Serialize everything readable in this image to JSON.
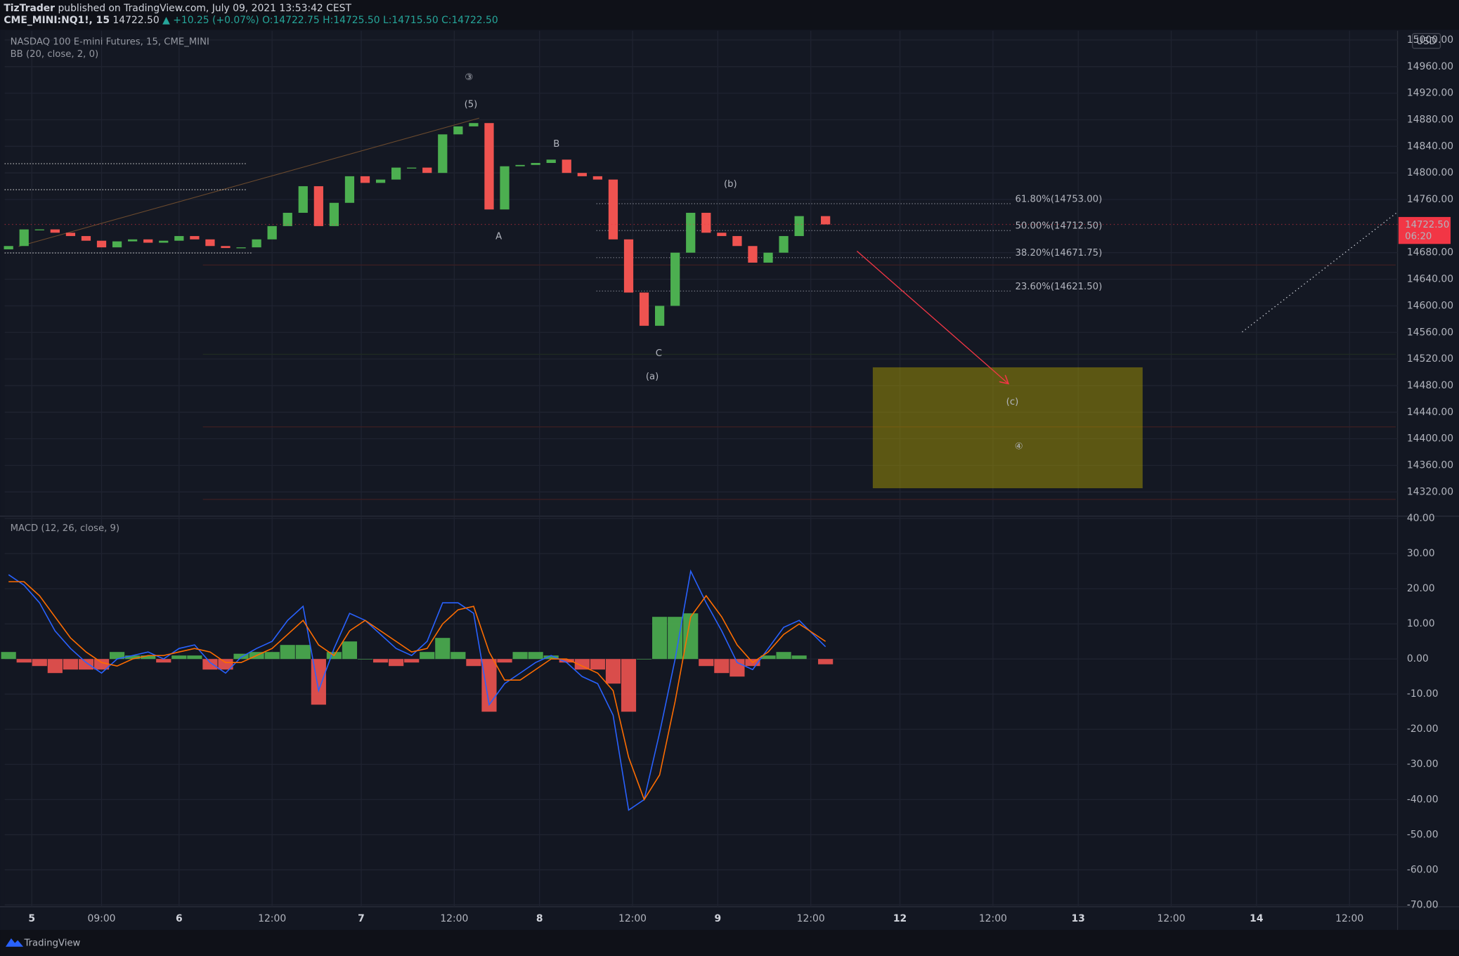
{
  "header": {
    "author": "TizTrader",
    "published": "published on TradingView.com, July 09, 2021 13:53:42 CEST",
    "symbol": "CME_MINI:NQ1!, 15",
    "price": "14722.50",
    "change": "▲ +10.25 (+0.07%)",
    "ohlc": "O:14722.75 H:14725.50 L:14715.50 C:14722.50"
  },
  "chart_data": [
    {
      "type": "candlestick",
      "title": "NASDAQ 100 E-mini Futures, 15, CME_MINI",
      "indicator": "BB (20, close, 2, 0)",
      "up_color": "#4caf50",
      "down_color": "#ef5350",
      "x": [
        -3,
        -1,
        1,
        3,
        5,
        7,
        9,
        11,
        13,
        15,
        17,
        19,
        21,
        23,
        25,
        27,
        29,
        31,
        33,
        35,
        37,
        39,
        41,
        43,
        45,
        47,
        49,
        51,
        53,
        55,
        57,
        59,
        61,
        63,
        65,
        67,
        69,
        71,
        73,
        75,
        77,
        79,
        81,
        83,
        85,
        87,
        89,
        91,
        93,
        95,
        97,
        99,
        102.4
      ],
      "open": [
        14685,
        14690,
        14715,
        14715,
        14710,
        14705,
        14698,
        14688,
        14697,
        14700,
        14695,
        14698,
        14705,
        14700,
        14690,
        14687,
        14688,
        14700,
        14720,
        14740,
        14780,
        14720,
        14755,
        14795,
        14785,
        14790,
        14808,
        14808,
        14800,
        14858,
        14870,
        14875,
        14745,
        14810,
        14812,
        14815,
        14820,
        14800,
        14795,
        14790,
        14700,
        14620,
        14570,
        14600,
        14680,
        14740,
        14710,
        14705,
        14690,
        14665,
        14680,
        14705,
        14735
      ],
      "close": [
        14690,
        14715,
        14715,
        14710,
        14705,
        14698,
        14688,
        14697,
        14700,
        14695,
        14698,
        14705,
        14700,
        14690,
        14687,
        14688,
        14700,
        14720,
        14740,
        14780,
        14720,
        14755,
        14795,
        14785,
        14790,
        14808,
        14808,
        14800,
        14858,
        14870,
        14875,
        14745,
        14810,
        14812,
        14815,
        14820,
        14800,
        14795,
        14790,
        14700,
        14620,
        14570,
        14600,
        14680,
        14740,
        14710,
        14705,
        14690,
        14665,
        14680,
        14705,
        14735,
        14722.5
      ],
      "xlim": [
        -3.5,
        176.2
      ],
      "xticks": [
        {
          "value": 0,
          "label": "5"
        },
        {
          "value": 9,
          "label": "09:00"
        },
        {
          "value": 19,
          "label": "6"
        },
        {
          "value": 31,
          "label": "12:00"
        },
        {
          "value": 42.5,
          "label": "7"
        },
        {
          "value": 54.5,
          "label": "12:00"
        },
        {
          "value": 65.5,
          "label": "8"
        },
        {
          "value": 77.5,
          "label": "12:00"
        },
        {
          "value": 88.5,
          "label": "9"
        },
        {
          "value": 100.5,
          "label": "12:00"
        },
        {
          "value": 112,
          "label": "12"
        },
        {
          "value": 124,
          "label": "12:00"
        },
        {
          "value": 135,
          "label": "13"
        },
        {
          "value": 147,
          "label": "12:00"
        },
        {
          "value": 158,
          "label": "14"
        },
        {
          "value": 170,
          "label": "12:00"
        }
      ],
      "ylim": [
        14285,
        15014
      ],
      "yticks": [
        {
          "value": 14320,
          "label": "14320.00"
        },
        {
          "value": 14360,
          "label": "14360.00"
        },
        {
          "value": 14400,
          "label": "14400.00"
        },
        {
          "value": 14440,
          "label": "14440.00"
        },
        {
          "value": 14480,
          "label": "14480.00"
        },
        {
          "value": 14520,
          "label": "14520.00"
        },
        {
          "value": 14560,
          "label": "14560.00"
        },
        {
          "value": 14600,
          "label": "14600.00"
        },
        {
          "value": 14640,
          "label": "14640.00"
        },
        {
          "value": 14680,
          "label": "14680.00"
        },
        {
          "value": 14760,
          "label": "14760.00"
        },
        {
          "value": 14800,
          "label": "14800.00"
        },
        {
          "value": 14840,
          "label": "14840.00"
        },
        {
          "value": 14880,
          "label": "14880.00"
        },
        {
          "value": 14920,
          "label": "14920.00"
        },
        {
          "value": 14960,
          "label": "14960.00"
        },
        {
          "value": 15000,
          "label": "15000.00"
        }
      ],
      "grid": true,
      "currency": "USD",
      "last_price": {
        "value": 14722.5,
        "label": "14722.50"
      },
      "countdown": "06:20",
      "annotations": [
        "③",
        "(5)",
        "A",
        "B",
        "C",
        "(a)",
        "(b)",
        "(c)",
        "④"
      ],
      "fib_labels": [
        "61.80%(14753.00)",
        "50.00%(14712.50)",
        "38.20%(14671.75)",
        "23.60%(14621.50)"
      ]
    },
    {
      "type": "macd",
      "title": "MACD (12, 26, close, 9)",
      "x": [
        -3,
        -1,
        1,
        3,
        5,
        7,
        9,
        11,
        13,
        15,
        17,
        19,
        21,
        23,
        25,
        27,
        29,
        31,
        33,
        35,
        37,
        39,
        41,
        43,
        45,
        47,
        49,
        51,
        53,
        55,
        57,
        59,
        61,
        63,
        65,
        67,
        69,
        71,
        73,
        75,
        77,
        79,
        81,
        83,
        85,
        87,
        89,
        91,
        93,
        95,
        97,
        99,
        102.4
      ],
      "series": [
        {
          "color": "#2962ff",
          "values": [
            24,
            21,
            16,
            8,
            3,
            -1,
            -4,
            0,
            1,
            2,
            0,
            3,
            4,
            -1,
            -4,
            0.5,
            3,
            5,
            11,
            15,
            -9,
            3,
            13,
            11,
            7,
            3,
            1,
            5,
            16,
            16,
            13,
            -13,
            -7,
            -4,
            -1,
            1,
            -1,
            -5,
            -7,
            -16,
            -43,
            -40,
            -21,
            0,
            25,
            16,
            8,
            -1,
            -3,
            3,
            9,
            11,
            3.5
          ]
        },
        {
          "color": "#ff6d00",
          "values": [
            22,
            22,
            18,
            12,
            6,
            2,
            -1,
            -2,
            0,
            1,
            1,
            2,
            3,
            2,
            -1,
            -1,
            1,
            3,
            7,
            11,
            4,
            1,
            8,
            11,
            8,
            5,
            2,
            3,
            10,
            14,
            15,
            2,
            -6,
            -6,
            -3,
            0,
            0,
            -2,
            -4,
            -9,
            -28,
            -40,
            -33,
            -12,
            12,
            18,
            12,
            4,
            -1,
            2,
            7,
            10,
            5
          ]
        }
      ],
      "histogram": {
        "up_color": "#4caf50",
        "down_color": "#ef5350",
        "values": [
          2,
          -1,
          -2,
          -4,
          -3,
          -3,
          -3,
          2,
          1,
          1,
          -1,
          1,
          1,
          -3,
          -3,
          1.5,
          2,
          2,
          4,
          4,
          -13,
          2,
          5,
          0,
          -1,
          -2,
          -1,
          2,
          6,
          2,
          -2,
          -15,
          -1,
          2,
          2,
          1,
          -1,
          -3,
          -3,
          -7,
          -15,
          0,
          12,
          12,
          13,
          -2,
          -4,
          -5,
          -2,
          1,
          2,
          1,
          -1.5
        ]
      },
      "ylim": [
        -70.5,
        40.4
      ],
      "yticks": [
        {
          "value": 40,
          "label": "40.00"
        },
        {
          "value": 30,
          "label": "30.00"
        },
        {
          "value": 20,
          "label": "20.00"
        },
        {
          "value": 10,
          "label": "10.00"
        },
        {
          "value": 0,
          "label": "0.00"
        },
        {
          "value": -10,
          "label": "-10.00"
        },
        {
          "value": -20,
          "label": "-20.00"
        },
        {
          "value": -30,
          "label": "-30.00"
        },
        {
          "value": -40,
          "label": "-40.00"
        },
        {
          "value": -50,
          "label": "-50.00"
        },
        {
          "value": -60,
          "label": "-60.00"
        },
        {
          "value": -70,
          "label": "-70.00"
        }
      ],
      "grid": true
    }
  ],
  "footer": {
    "brand": "TradingView"
  }
}
